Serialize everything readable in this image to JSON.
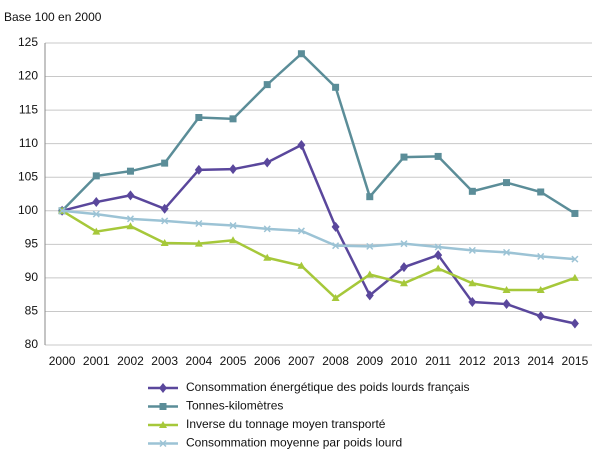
{
  "chart_data": {
    "type": "line",
    "y_label": "Base 100 en 2000",
    "categories": [
      "2000",
      "2001",
      "2002",
      "2003",
      "2004",
      "2005",
      "2006",
      "2007",
      "2008",
      "2009",
      "2010",
      "2011",
      "2012",
      "2013",
      "2014",
      "2015"
    ],
    "series": [
      {
        "name": "Consommation énergétique des poids lourds français",
        "color": "#5a479c",
        "marker": "diamond",
        "values": [
          100,
          101.3,
          102.3,
          100.3,
          106.1,
          106.2,
          107.2,
          109.8,
          97.6,
          87.4,
          91.6,
          93.4,
          86.4,
          86.1,
          84.3,
          83.2
        ]
      },
      {
        "name": "Tonnes-kilomètres",
        "color": "#5b8d98",
        "marker": "square",
        "values": [
          100,
          105.2,
          105.9,
          107.1,
          113.9,
          113.7,
          118.8,
          123.4,
          118.4,
          102.1,
          108,
          108.1,
          102.9,
          104.2,
          102.8,
          99.6
        ]
      },
      {
        "name": "Inverse du tonnage moyen transporté",
        "color": "#a6c83a",
        "marker": "triangle",
        "values": [
          100,
          96.9,
          97.7,
          95.2,
          95.1,
          95.6,
          93,
          91.8,
          87,
          90.5,
          89.2,
          91.4,
          89.2,
          88.2,
          88.2,
          90
        ]
      },
      {
        "name": "Consommation moyenne par poids lourd",
        "color": "#9cc3d5",
        "marker": "x",
        "values": [
          100,
          99.5,
          98.8,
          98.5,
          98.1,
          97.8,
          97.3,
          97,
          94.8,
          94.7,
          95.1,
          94.6,
          94.1,
          93.8,
          93.2,
          92.8
        ]
      }
    ],
    "ylim": [
      80,
      125
    ],
    "yticks": [
      80,
      85,
      90,
      95,
      100,
      105,
      110,
      115,
      120,
      125
    ],
    "grid": true,
    "legend": "bottom"
  }
}
